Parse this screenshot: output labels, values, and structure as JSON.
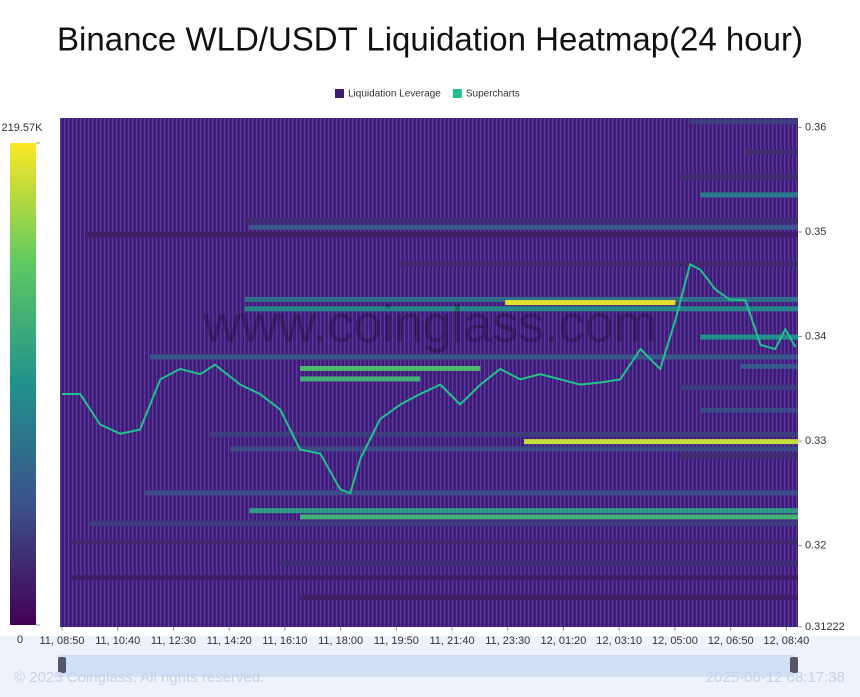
{
  "chart_data": {
    "type": "heatmap",
    "title": "Binance WLD/USDT Liquidation Heatmap(24 hour)",
    "watermark": "www.coinglass.com",
    "legend": "top",
    "colorbar": {
      "lim": [
        0,
        219570
      ],
      "ticks": [
        0,
        {
          "value": 219570,
          "label": "219.57K"
        }
      ]
    },
    "xlim": [
      -4,
      1453
    ],
    "xticks": [
      {
        "value": 0,
        "label": "11, 08:50"
      },
      {
        "value": 110,
        "label": "11, 10:40"
      },
      {
        "value": 220,
        "label": "11, 12:30"
      },
      {
        "value": 330,
        "label": "11, 14:20"
      },
      {
        "value": 440,
        "label": "11, 16:10"
      },
      {
        "value": 550,
        "label": "11, 18:00"
      },
      {
        "value": 660,
        "label": "11, 19:50"
      },
      {
        "value": 770,
        "label": "11, 21:40"
      },
      {
        "value": 880,
        "label": "11, 23:30"
      },
      {
        "value": 990,
        "label": "12, 01:20"
      },
      {
        "value": 1100,
        "label": "12, 03:10"
      },
      {
        "value": 1210,
        "label": "12, 05:00"
      },
      {
        "value": 1320,
        "label": "12, 06:50"
      },
      {
        "value": 1430,
        "label": "12, 08:40"
      }
    ],
    "ylim": [
      0.31222,
      0.3609
    ],
    "yticks": [
      0.31222,
      0.32,
      0.33,
      0.34,
      0.35,
      0.36
    ],
    "series": [
      {
        "name": "Liquidation Leverage",
        "color": "#3b1c72",
        "price": [
          0.3605,
          0.3576,
          0.3552,
          0.3535,
          0.351,
          0.3504,
          0.3497,
          0.3469,
          0.3435,
          0.3432,
          0.3426,
          0.3399,
          0.338,
          0.3369,
          0.3371,
          0.3359,
          0.3351,
          0.3329,
          0.3306,
          0.3299,
          0.3292,
          0.3285,
          0.325,
          0.3233,
          0.3227,
          0.3221,
          0.3203,
          0.3183,
          0.3169,
          0.315
        ],
        "start": [
          1240,
          1349,
          1220,
          1260,
          361,
          370,
          45,
          668,
          361,
          875,
          361,
          1260,
          174,
          470,
          1339,
          470,
          1220,
          1260,
          292,
          912,
          332,
          1220,
          164,
          370,
          470,
          55,
          16,
          431,
          16,
          470
        ],
        "end": [
          1453,
          1453,
          1453,
          1453,
          1453,
          1453,
          1453,
          1453,
          1453,
          1211,
          1453,
          1453,
          1453,
          826,
          1453,
          707,
          1453,
          1453,
          1453,
          1453,
          1453,
          1453,
          1453,
          1453,
          1453,
          1453,
          1453,
          1453,
          1453,
          1453
        ],
        "level": [
          40000,
          30000,
          30000,
          90000,
          30000,
          60000,
          20000,
          25000,
          80000,
          210000,
          100000,
          110000,
          60000,
          150000,
          60000,
          140000,
          40000,
          50000,
          40000,
          200000,
          50000,
          30000,
          50000,
          120000,
          140000,
          40000,
          25000,
          30000,
          20000,
          20000
        ]
      },
      {
        "name": "Supercharts",
        "color": "#22c08d",
        "x": [
          0,
          36,
          75,
          115,
          154,
          194,
          233,
          273,
          302,
          352,
          391,
          431,
          470,
          510,
          549,
          569,
          589,
          628,
          668,
          707,
          747,
          786,
          826,
          865,
          905,
          944,
          984,
          1023,
          1063,
          1102,
          1142,
          1181,
          1211,
          1240,
          1260,
          1290,
          1319,
          1349,
          1379,
          1408,
          1428,
          1448
        ],
        "values": [
          0.3345,
          0.3345,
          0.3316,
          0.3307,
          0.3311,
          0.3359,
          0.3369,
          0.3364,
          0.3373,
          0.3354,
          0.3345,
          0.333,
          0.3292,
          0.3288,
          0.3254,
          0.325,
          0.3283,
          0.3321,
          0.3335,
          0.3345,
          0.3354,
          0.3335,
          0.3354,
          0.3369,
          0.3359,
          0.3364,
          0.3359,
          0.3354,
          0.3356,
          0.3359,
          0.3388,
          0.3369,
          0.3416,
          0.3469,
          0.3464,
          0.3445,
          0.3435,
          0.3435,
          0.3392,
          0.3388,
          0.3407,
          0.339
        ]
      }
    ]
  },
  "footer": {
    "copyright": "© 2025 Coinglass. All rights reserved.",
    "timestamp": "2025-06-12 08:17:38"
  }
}
